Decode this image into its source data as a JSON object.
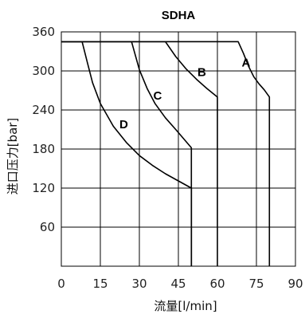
{
  "chart_data": {
    "type": "line",
    "title": "SDHA",
    "xlabel": "流量[l/min]",
    "ylabel": "进口压力[bar]",
    "xlim": [
      0,
      90
    ],
    "ylim": [
      0,
      360
    ],
    "xticks": [
      "0",
      "15",
      "30",
      "45",
      "60",
      "75",
      "90"
    ],
    "yticks": [
      "60",
      "120",
      "180",
      "240",
      "300",
      "360"
    ],
    "grid": true,
    "series": [
      {
        "name": "A",
        "x": [
          0,
          68,
          70,
          72,
          74,
          76,
          78,
          80,
          80
        ],
        "y": [
          345,
          345,
          327,
          307,
          291,
          280,
          271,
          260,
          0
        ]
      },
      {
        "name": "B",
        "x": [
          0,
          40,
          44,
          48,
          52,
          56,
          60,
          60
        ],
        "y": [
          345,
          345,
          322,
          303,
          287,
          273,
          260,
          0
        ]
      },
      {
        "name": "C",
        "x": [
          0,
          27,
          30,
          33,
          36,
          40,
          44,
          50,
          50
        ],
        "y": [
          345,
          345,
          302,
          273,
          250,
          228,
          210,
          182,
          0
        ]
      },
      {
        "name": "D",
        "x": [
          0,
          8,
          10,
          12,
          15,
          20,
          25,
          30,
          35,
          40,
          45,
          50,
          50
        ],
        "y": [
          345,
          345,
          313,
          282,
          250,
          215,
          190,
          170,
          155,
          142,
          131,
          120,
          0
        ]
      }
    ],
    "annotations": [
      {
        "text": "A",
        "x": 71,
        "y": 313
      },
      {
        "text": "B",
        "x": 54,
        "y": 298
      },
      {
        "text": "C",
        "x": 37,
        "y": 262
      },
      {
        "text": "D",
        "x": 24,
        "y": 218
      }
    ]
  }
}
